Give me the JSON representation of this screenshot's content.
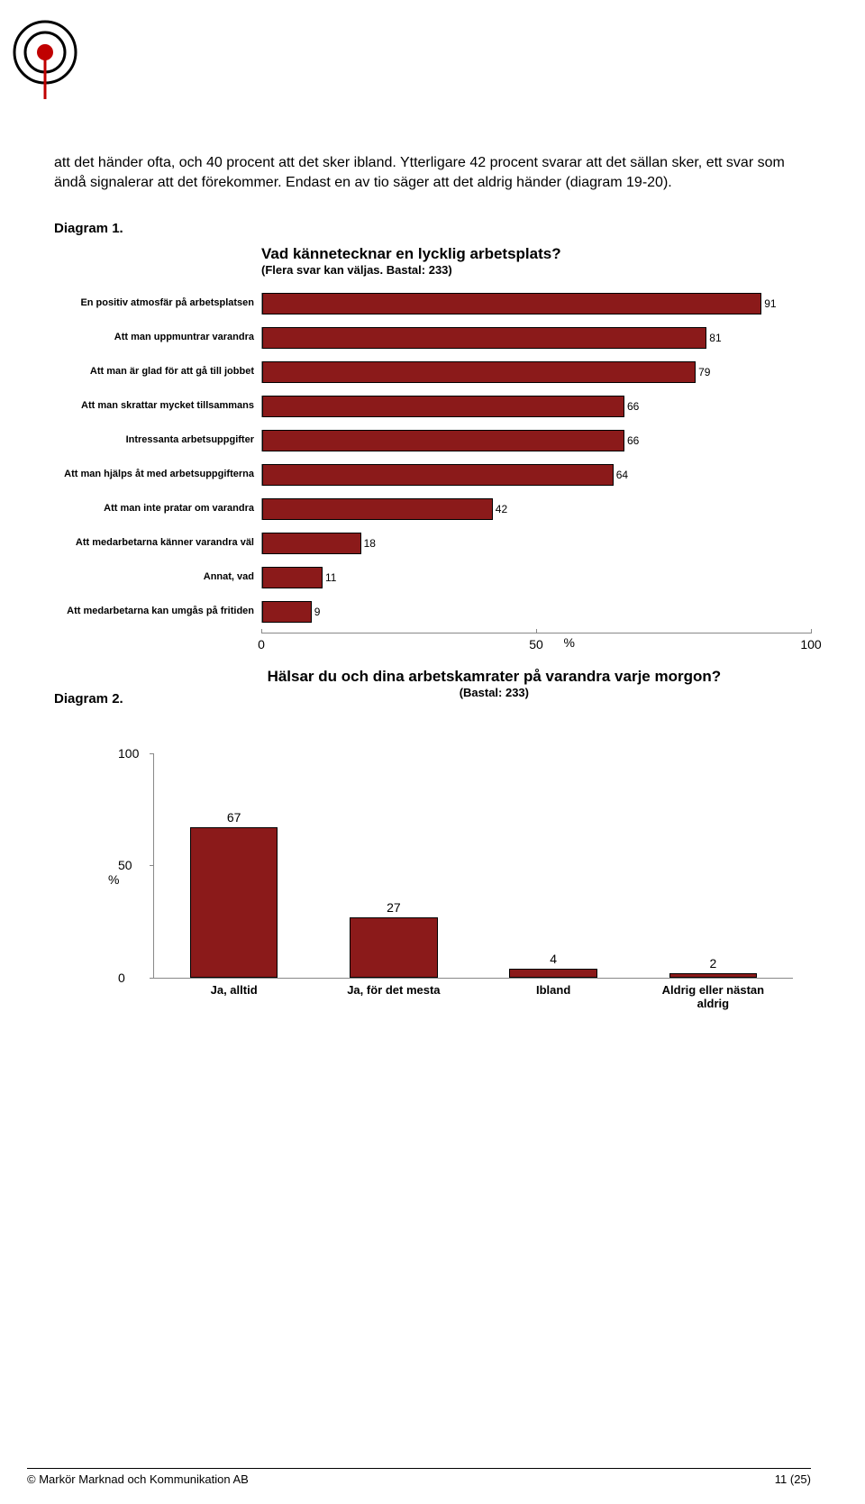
{
  "body_text": "att det händer ofta, och 40 procent att det sker ibland. Ytterligare 42 procent svarar att det sällan sker, ett svar som ändå signalerar att det förekommer. Endast en av tio säger att det aldrig händer (diagram 19-20).",
  "diagram1": {
    "label": "Diagram 1.",
    "title": "Vad kännetecknar en lycklig arbetsplats?",
    "subtitle": "(Flera svar kan väljas. Bastal: 233)",
    "bar_color": "#8b1a1a",
    "bar_border": "#000000",
    "xmax": 100,
    "xticks": [
      0,
      50,
      100
    ],
    "pct_symbol": "%",
    "pct_pos": 55,
    "items": [
      {
        "label": "En positiv atmosfär på arbetsplatsen",
        "value": 91
      },
      {
        "label": "Att man uppmuntrar varandra",
        "value": 81
      },
      {
        "label": "Att man är glad för att gå till jobbet",
        "value": 79
      },
      {
        "label": "Att man skrattar mycket tillsammans",
        "value": 66
      },
      {
        "label": "Intressanta arbetsuppgifter",
        "value": 66
      },
      {
        "label": "Att man hjälps åt med arbetsuppgifterna",
        "value": 64
      },
      {
        "label": "Att man inte pratar om varandra",
        "value": 42
      },
      {
        "label": "Att medarbetarna känner varandra väl",
        "value": 18
      },
      {
        "label": "Annat, vad",
        "value": 11
      },
      {
        "label": "Att medarbetarna kan umgås på fritiden",
        "value": 9
      }
    ]
  },
  "diagram2": {
    "label": "Diagram 2.",
    "title": "Hälsar du och dina arbetskamrater på varandra varje morgon?",
    "subtitle": "(Bastal: 233)",
    "bar_color": "#8b1a1a",
    "bar_border": "#000000",
    "ymax": 100,
    "yticks": [
      0,
      50,
      100
    ],
    "ylabel": "%",
    "items": [
      {
        "label": "Ja, alltid",
        "value": 67
      },
      {
        "label": "Ja, för det mesta",
        "value": 27
      },
      {
        "label": "Ibland",
        "value": 4
      },
      {
        "label": "Aldrig eller nästan aldrig",
        "value": 2
      }
    ]
  },
  "footer": {
    "left": "© Markör Marknad och Kommunikation AB",
    "right": "11 (25)"
  }
}
